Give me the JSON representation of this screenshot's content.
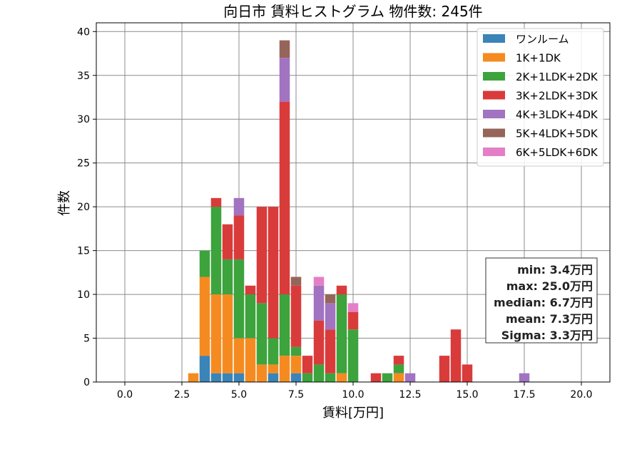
{
  "chart_data": {
    "type": "bar",
    "stacked": true,
    "title": "向日市 賃料ヒストグラム 物件数: 245件",
    "xlabel": "賃料[万円]",
    "ylabel": "件数",
    "xlim": [
      -1.25,
      21.25
    ],
    "ylim": [
      0,
      41
    ],
    "bin_width": 0.5,
    "x_ticks": [
      0.0,
      2.5,
      5.0,
      7.5,
      10.0,
      12.5,
      15.0,
      17.5,
      20.0
    ],
    "x_tick_labels": [
      "0.0",
      "2.5",
      "5.0",
      "7.5",
      "10.0",
      "12.5",
      "15.0",
      "17.5",
      "20.0"
    ],
    "y_ticks": [
      0,
      5,
      10,
      15,
      20,
      25,
      30,
      35,
      40
    ],
    "y_tick_labels": [
      "0",
      "5",
      "10",
      "15",
      "20",
      "25",
      "30",
      "35",
      "40"
    ],
    "grid": true,
    "legend_position": "top-right",
    "x": [
      3.0,
      3.5,
      4.0,
      4.5,
      5.0,
      5.5,
      6.0,
      6.5,
      7.0,
      7.5,
      8.0,
      8.5,
      9.0,
      9.5,
      10.0,
      11.0,
      11.5,
      12.0,
      12.5,
      14.0,
      14.5,
      15.0,
      17.5
    ],
    "series": [
      {
        "name": "ワンルーム",
        "color": "#3a84b8",
        "values": [
          0,
          3,
          1,
          1,
          1,
          0,
          0,
          1,
          0,
          1,
          0,
          0,
          0,
          0,
          0,
          0,
          0,
          0,
          0,
          0,
          0,
          0,
          0
        ]
      },
      {
        "name": "1K+1DK",
        "color": "#f58b20",
        "values": [
          1,
          9,
          9,
          9,
          4,
          5,
          2,
          1,
          3,
          2,
          0,
          0,
          0,
          1,
          0,
          0,
          0,
          1,
          0,
          0,
          0,
          0,
          0
        ]
      },
      {
        "name": "2K+1LDK+2DK",
        "color": "#3da33d",
        "values": [
          0,
          3,
          10,
          4,
          9,
          5,
          7,
          3,
          7,
          1,
          1,
          2,
          1,
          9,
          6,
          0,
          1,
          1,
          0,
          0,
          0,
          0,
          0
        ]
      },
      {
        "name": "3K+2LDK+3DK",
        "color": "#d93b3b",
        "values": [
          0,
          0,
          1,
          4,
          5,
          1,
          11,
          15,
          22,
          7,
          2,
          5,
          5,
          1,
          2,
          1,
          0,
          1,
          0,
          3,
          6,
          2,
          0
        ]
      },
      {
        "name": "4K+3LDK+4DK",
        "color": "#a173c1",
        "values": [
          0,
          0,
          0,
          0,
          2,
          0,
          0,
          0,
          5,
          0,
          0,
          4,
          3,
          0,
          0,
          0,
          0,
          0,
          1,
          0,
          0,
          0,
          1
        ]
      },
      {
        "name": "5K+4LDK+5DK",
        "color": "#956559",
        "values": [
          0,
          0,
          0,
          0,
          0,
          0,
          0,
          0,
          2,
          1,
          0,
          0,
          1,
          0,
          0,
          0,
          0,
          0,
          0,
          0,
          0,
          0,
          0
        ]
      },
      {
        "name": "6K+5LDK+6DK",
        "color": "#e47fc7",
        "values": [
          0,
          0,
          0,
          0,
          0,
          0,
          0,
          0,
          0,
          0,
          0,
          1,
          0,
          0,
          1,
          0,
          0,
          0,
          0,
          0,
          0,
          0,
          0
        ]
      }
    ],
    "annotations": [
      "min: 3.4万円",
      "max: 25.0万円",
      "median: 6.7万円",
      "mean: 7.3万円",
      "Sigma: 3.3万円"
    ]
  }
}
